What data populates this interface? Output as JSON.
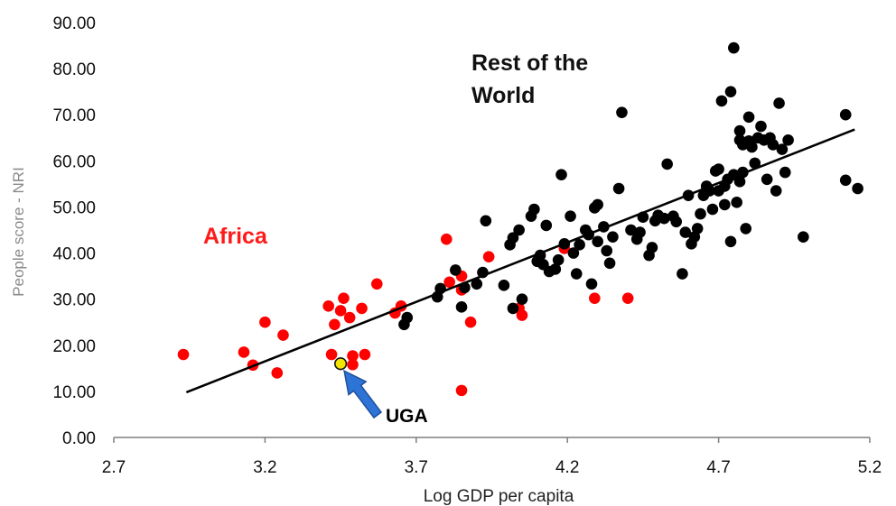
{
  "chart_data": {
    "type": "scatter",
    "xlabel": "Log GDP per capita",
    "ylabel": "People score - NRI",
    "xlim": [
      2.7,
      5.2
    ],
    "ylim": [
      0,
      90
    ],
    "x_ticks": [
      "2.7",
      "3.2",
      "3.7",
      "4.2",
      "4.7",
      "5.2"
    ],
    "y_ticks": [
      "0.00",
      "10.00",
      "20.00",
      "30.00",
      "40.00",
      "50.00",
      "60.00",
      "70.00",
      "80.00",
      "90.00"
    ],
    "grid": false,
    "colors": {
      "africa": "#ff0000",
      "rest": "#000000",
      "highlight": "#f2e600",
      "arrow": "#2e74d6",
      "trendline": "#000000"
    },
    "annotations": {
      "rest_of_world": [
        "Rest of the",
        "World"
      ],
      "africa": "Africa",
      "uga": "UGA"
    },
    "trendline": {
      "x": [
        2.94,
        5.15
      ],
      "y": [
        9.8,
        66.8
      ]
    },
    "highlight_point": {
      "label": "UGA",
      "x": 3.45,
      "y": 16.0
    },
    "series": [
      {
        "color": "#ff0000",
        "points": [
          [
            2.93,
            18.0
          ],
          [
            3.13,
            18.5
          ],
          [
            3.16,
            15.7
          ],
          [
            3.2,
            25.0
          ],
          [
            3.24,
            14.0
          ],
          [
            3.26,
            22.2
          ],
          [
            3.41,
            28.5
          ],
          [
            3.42,
            18.0
          ],
          [
            3.43,
            24.5
          ],
          [
            3.45,
            27.5
          ],
          [
            3.46,
            30.2
          ],
          [
            3.48,
            26.0
          ],
          [
            3.49,
            17.7
          ],
          [
            3.49,
            15.8
          ],
          [
            3.52,
            28.0
          ],
          [
            3.53,
            18.0
          ],
          [
            3.57,
            33.3
          ],
          [
            3.63,
            27.0
          ],
          [
            3.65,
            28.5
          ],
          [
            3.8,
            43.0
          ],
          [
            3.81,
            33.7
          ],
          [
            3.85,
            35.0
          ],
          [
            3.85,
            10.2
          ],
          [
            3.88,
            25.0
          ],
          [
            3.94,
            39.2
          ],
          [
            4.04,
            28.0
          ],
          [
            4.05,
            26.5
          ],
          [
            4.19,
            41.0
          ],
          [
            4.29,
            30.2
          ],
          [
            4.4,
            30.2
          ],
          [
            3.85,
            32.0
          ]
        ]
      },
      {
        "color": "#000000",
        "points": [
          [
            3.66,
            24.5
          ],
          [
            3.67,
            26.0
          ],
          [
            3.77,
            30.5
          ],
          [
            3.78,
            32.3
          ],
          [
            3.83,
            36.3
          ],
          [
            3.85,
            28.3
          ],
          [
            3.86,
            32.5
          ],
          [
            3.9,
            33.3
          ],
          [
            3.92,
            35.8
          ],
          [
            3.93,
            47.0
          ],
          [
            3.99,
            33.0
          ],
          [
            4.01,
            41.8
          ],
          [
            4.02,
            43.3
          ],
          [
            4.02,
            28.0
          ],
          [
            4.04,
            45.0
          ],
          [
            4.05,
            30.0
          ],
          [
            4.08,
            48.0
          ],
          [
            4.09,
            49.5
          ],
          [
            4.1,
            38.2
          ],
          [
            4.11,
            39.5
          ],
          [
            4.12,
            37.5
          ],
          [
            4.13,
            46.0
          ],
          [
            4.14,
            36.0
          ],
          [
            4.16,
            36.5
          ],
          [
            4.17,
            38.5
          ],
          [
            4.18,
            57.0
          ],
          [
            4.19,
            42.0
          ],
          [
            4.21,
            48.0
          ],
          [
            4.22,
            40.0
          ],
          [
            4.23,
            35.5
          ],
          [
            4.24,
            41.8
          ],
          [
            4.26,
            45.0
          ],
          [
            4.27,
            44.0
          ],
          [
            4.28,
            33.3
          ],
          [
            4.29,
            49.8
          ],
          [
            4.3,
            50.5
          ],
          [
            4.3,
            42.5
          ],
          [
            4.32,
            45.7
          ],
          [
            4.33,
            40.5
          ],
          [
            4.34,
            37.8
          ],
          [
            4.35,
            43.5
          ],
          [
            4.37,
            54.0
          ],
          [
            4.38,
            70.5
          ],
          [
            4.41,
            45.0
          ],
          [
            4.43,
            43.0
          ],
          [
            4.44,
            44.5
          ],
          [
            4.45,
            47.8
          ],
          [
            4.47,
            39.5
          ],
          [
            4.48,
            41.2
          ],
          [
            4.49,
            47.0
          ],
          [
            4.5,
            48.2
          ],
          [
            4.52,
            47.5
          ],
          [
            4.53,
            59.3
          ],
          [
            4.55,
            48.0
          ],
          [
            4.56,
            46.8
          ],
          [
            4.58,
            35.5
          ],
          [
            4.59,
            44.5
          ],
          [
            4.6,
            52.5
          ],
          [
            4.61,
            42.0
          ],
          [
            4.62,
            43.5
          ],
          [
            4.63,
            45.3
          ],
          [
            4.64,
            48.5
          ],
          [
            4.65,
            52.5
          ],
          [
            4.66,
            54.5
          ],
          [
            4.67,
            53.5
          ],
          [
            4.68,
            49.5
          ],
          [
            4.69,
            57.8
          ],
          [
            4.7,
            58.2
          ],
          [
            4.7,
            53.5
          ],
          [
            4.71,
            73.0
          ],
          [
            4.72,
            54.5
          ],
          [
            4.72,
            50.5
          ],
          [
            4.73,
            56.0
          ],
          [
            4.74,
            42.5
          ],
          [
            4.74,
            75.0
          ],
          [
            4.75,
            84.5
          ],
          [
            4.75,
            57.0
          ],
          [
            4.76,
            51.0
          ],
          [
            4.77,
            55.5
          ],
          [
            4.77,
            64.5
          ],
          [
            4.77,
            66.5
          ],
          [
            4.78,
            63.5
          ],
          [
            4.78,
            57.5
          ],
          [
            4.79,
            45.3
          ],
          [
            4.8,
            69.5
          ],
          [
            4.8,
            64.3
          ],
          [
            4.81,
            63.0
          ],
          [
            4.82,
            59.5
          ],
          [
            4.83,
            65.0
          ],
          [
            4.84,
            67.5
          ],
          [
            4.85,
            64.5
          ],
          [
            4.86,
            56.0
          ],
          [
            4.87,
            65.0
          ],
          [
            4.88,
            63.5
          ],
          [
            4.89,
            53.5
          ],
          [
            4.9,
            72.5
          ],
          [
            4.91,
            62.5
          ],
          [
            4.92,
            57.5
          ],
          [
            4.93,
            64.5
          ],
          [
            4.98,
            43.5
          ],
          [
            5.12,
            70.0
          ],
          [
            5.12,
            55.8
          ],
          [
            5.16,
            54.0
          ]
        ]
      }
    ]
  }
}
